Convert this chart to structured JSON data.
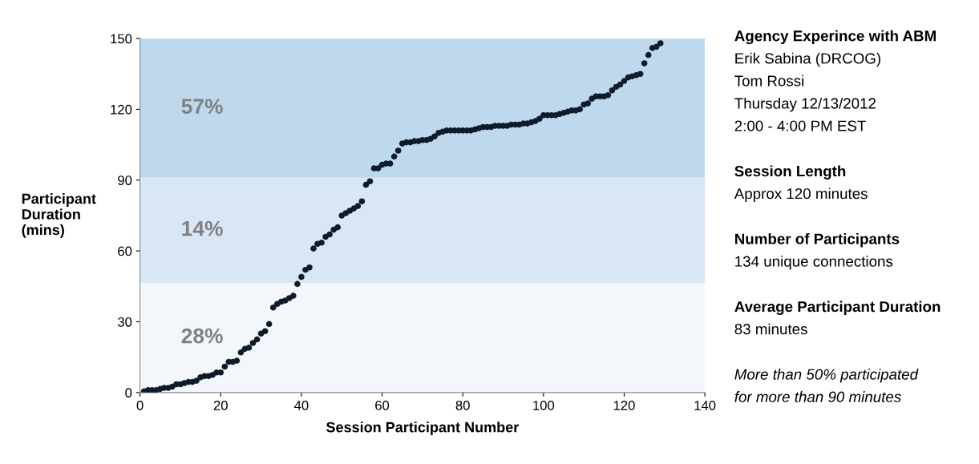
{
  "chart_data": {
    "type": "scatter",
    "xlabel": "Session Participant Number",
    "ylabel": "Participant\nDuration\n(mins)",
    "x": [
      1,
      2,
      3,
      4,
      5,
      6,
      7,
      8,
      9,
      10,
      11,
      12,
      13,
      14,
      15,
      16,
      17,
      18,
      19,
      20,
      21,
      22,
      23,
      24,
      25,
      26,
      27,
      28,
      29,
      30,
      31,
      32,
      33,
      34,
      35,
      36,
      37,
      38,
      39,
      40,
      41,
      42,
      43,
      44,
      45,
      46,
      47,
      48,
      49,
      50,
      51,
      52,
      53,
      54,
      55,
      56,
      57,
      58,
      59,
      60,
      61,
      62,
      63,
      64,
      65,
      66,
      67,
      68,
      69,
      70,
      71,
      72,
      73,
      74,
      75,
      76,
      77,
      78,
      79,
      80,
      81,
      82,
      83,
      84,
      85,
      86,
      87,
      88,
      89,
      90,
      91,
      92,
      93,
      94,
      95,
      96,
      97,
      98,
      99,
      100,
      101,
      102,
      103,
      104,
      105,
      106,
      107,
      108,
      109,
      110,
      111,
      112,
      113,
      114,
      115,
      116,
      117,
      118,
      119,
      120,
      121,
      122,
      123,
      124,
      125,
      126,
      127,
      128,
      129
    ],
    "series": [
      {
        "color": "#0d1b2a",
        "values": [
          0.5,
          1,
          1,
          1,
          1.5,
          2,
          2,
          2.5,
          3.5,
          3.5,
          4,
          4.5,
          4.5,
          5,
          6.5,
          7,
          7,
          7.5,
          8.5,
          8.5,
          11,
          13,
          13,
          13.5,
          17,
          18.5,
          19,
          21,
          22.5,
          25,
          26,
          29,
          36,
          37.5,
          38.5,
          39,
          40,
          41,
          46,
          49,
          52,
          53,
          61,
          63,
          63.5,
          66,
          67,
          69,
          70,
          75,
          76,
          77,
          78,
          79,
          81,
          88,
          89.5,
          95,
          95,
          96.5,
          97,
          97,
          100,
          102.5,
          105.5,
          106,
          106,
          106.5,
          106.5,
          107,
          107,
          107.5,
          108.5,
          110,
          110.5,
          111,
          111,
          111,
          111,
          111,
          111,
          111,
          111.5,
          112,
          112.5,
          112.5,
          112.5,
          113,
          113,
          113,
          113,
          113.5,
          113.5,
          113.5,
          114,
          114,
          114.5,
          115,
          116,
          117.5,
          117.5,
          117.5,
          117.5,
          118,
          118.5,
          119,
          119.5,
          119.5,
          120,
          122,
          122.5,
          124.5,
          125.5,
          125.5,
          125.5,
          126,
          128,
          129.5,
          130.5,
          132,
          133.5,
          134,
          134.5,
          135,
          139.5,
          143,
          146,
          146.5,
          148
        ]
      }
    ],
    "marker": "circle",
    "xlim": [
      0,
      140
    ],
    "xticks": [
      0,
      20,
      40,
      60,
      80,
      100,
      120,
      140
    ],
    "ylim": [
      0,
      150
    ],
    "yticks": [
      0,
      30,
      60,
      90,
      120,
      150
    ],
    "grid": false,
    "bands": [
      {
        "axis": "y",
        "from": 0,
        "to": 46.5,
        "label": "28%",
        "color": "#f3f7fb"
      },
      {
        "axis": "y",
        "from": 46.5,
        "to": 91,
        "label": "14%",
        "color": "#d9e7f4"
      },
      {
        "axis": "y",
        "from": 91,
        "to": 150,
        "label": "57%",
        "color": "#bed9ee"
      }
    ],
    "annotations": [
      "Agency Experince with ABM\nErik Sabina (DRCOG)\nTom Rossi\nThursday 12/13/2012\n2:00 - 4:00 PM EST",
      "Session Length\nApprox 120 minutes",
      "Number of Participants\n134 unique connections",
      "Average Participant Duration\n83 minutes",
      "More than 50% participated\nfor more than 90 minutes"
    ]
  }
}
